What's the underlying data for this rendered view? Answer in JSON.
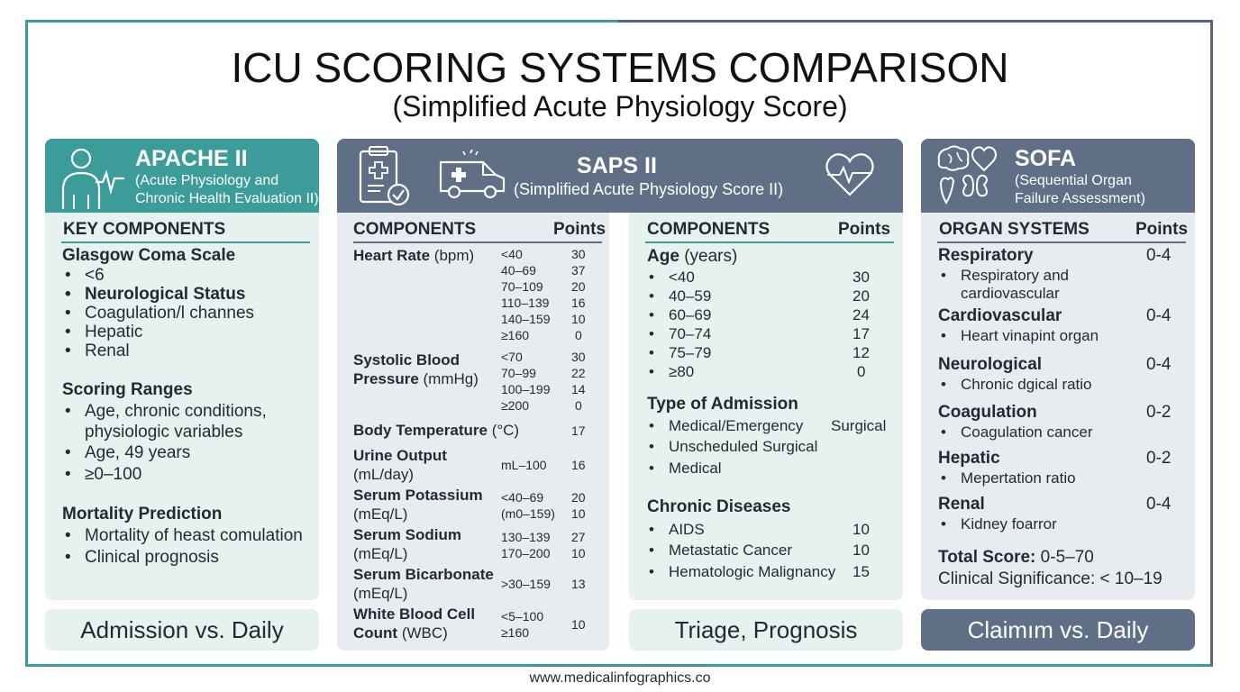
{
  "title": "ICU SCORING SYSTEMS COMPARISON",
  "subtitle": "(Simplified Acute Physiology Score)",
  "apache": {
    "name": "APACHE II",
    "full_name_1": "(Acute Physiology and",
    "full_name_2": "Chronic Health Evaluation II)",
    "col_header": "KEY COMPONENTS",
    "gcs_heading": "Glasgow Coma Scale",
    "gcs_items": [
      "<6",
      "Neurological Status",
      "Coagulation/l channes",
      "Hepatic",
      "Renal"
    ],
    "ranges_heading": "Scoring Ranges",
    "ranges_items": [
      "Age, chronic conditions,",
      "physiologic variables",
      "Age, 49 years",
      "≥0–100"
    ],
    "mortality_heading": "Mortality Prediction",
    "mortality_items": [
      "Mortality of heast comulation",
      "Clinical prognosis"
    ],
    "footer": "Admission vs. Daily"
  },
  "saps": {
    "name": "SAPS II",
    "full_name": "(Simplified Acute Physiology Score II)",
    "left": {
      "col_header": "COMPONENTS",
      "points_header": "Points",
      "heart_rate_label": "Heart Rate",
      "heart_rate_unit": "(bpm)",
      "heart_rate_rows": [
        [
          "<40",
          "30"
        ],
        [
          "40–69",
          "37"
        ],
        [
          "70–109",
          "20"
        ],
        [
          "110–139",
          "16"
        ],
        [
          "140–159",
          "10"
        ],
        [
          "≥160",
          "0"
        ]
      ],
      "sbp_label_1": "Systolic Blood",
      "sbp_label_2": "Pressure",
      "sbp_unit": "(mmHg)",
      "sbp_rows": [
        [
          "<70",
          "30"
        ],
        [
          "70–99",
          "22"
        ],
        [
          "100–199",
          "14"
        ],
        [
          "≥200",
          "0"
        ]
      ],
      "temp_label": "Body Temperature",
      "temp_unit": "(°C)",
      "temp_points": "17",
      "urine_label": "Urine Output",
      "urine_unit": "(mL/day)",
      "urine_range": "mL–100",
      "urine_points": "16",
      "potassium_label": "Serum Potassium",
      "potassium_unit": "(mEq/L)",
      "potassium_rows": [
        [
          "<40–69",
          "20"
        ],
        [
          "(m0–159)",
          "10"
        ]
      ],
      "sodium_label": "Serum Sodium",
      "sodium_unit": "(mEq/L)",
      "sodium_rows": [
        [
          "130–139",
          "27"
        ],
        [
          "170–200",
          "10"
        ]
      ],
      "bicarb_label": "Serum Bicarbonate",
      "bicarb_unit": "(mEq/L)",
      "bicarb_range": ">30–159",
      "bicarb_points": "13",
      "wbc_label_1": "White Blood Cell",
      "wbc_label_2": "Count",
      "wbc_unit": "(WBC)",
      "wbc_range_1": "<5–100",
      "wbc_range_2": "≥160",
      "wbc_points": "10"
    },
    "right": {
      "col_header": "COMPONENTS",
      "points_header": "Points",
      "age_label": "Age",
      "age_unit": "(years)",
      "age_rows": [
        [
          "<40",
          "30"
        ],
        [
          "40–59",
          "20"
        ],
        [
          "60–69",
          "24"
        ],
        [
          "70–74",
          "17"
        ],
        [
          "75–79",
          "12"
        ],
        [
          "≥80",
          "0"
        ]
      ],
      "admission_heading": "Type of Admission",
      "admission_items": [
        "Medical/Emergency",
        "Unscheduled Surgical",
        "Medical"
      ],
      "admission_side": "Surgical",
      "chronic_heading": "Chronic Diseases",
      "chronic_rows": [
        [
          "AIDS",
          "10"
        ],
        [
          "Metastatic Cancer",
          "10"
        ],
        [
          "Hematologic Malignancy",
          "15"
        ]
      ]
    },
    "footer": "Triage, Prognosis"
  },
  "sofa": {
    "name": "SOFA",
    "full_name_1": "(Sequential Organ",
    "full_name_2": "Failure Assessment)",
    "col_header": "ORGAN SYSTEMS",
    "points_header": "Points",
    "systems": [
      {
        "name": "Respiratory",
        "points": "0-4",
        "detail": "Respiratory and",
        "detail2": "cardiovascular"
      },
      {
        "name": "Cardiovascular",
        "points": "0-4",
        "detail": "Heart vinapint organ"
      },
      {
        "name": "Neurological",
        "points": "0-4",
        "detail": "Chronic dgical ratio"
      },
      {
        "name": "Coagulation",
        "points": "0-2",
        "detail": "Coagulation cancer"
      },
      {
        "name": "Hepatic",
        "points": "0-2",
        "detail": "Mepertation ratio"
      },
      {
        "name": "Renal",
        "points": "0-4",
        "detail": "Kidney foarror"
      }
    ],
    "total_label": "Total Score:",
    "total_value": "0-5–70",
    "significance_label": "Clinical Significance:",
    "significance_value": "< 10–19",
    "footer": "Claimım vs. Daily"
  },
  "website": "www.medicalinfographics.co",
  "colors": {
    "teal": "#3b9c9a",
    "slate": "#5e6f86",
    "teal_light": "#e5f2ef",
    "gray_light": "#e8ebf0"
  }
}
